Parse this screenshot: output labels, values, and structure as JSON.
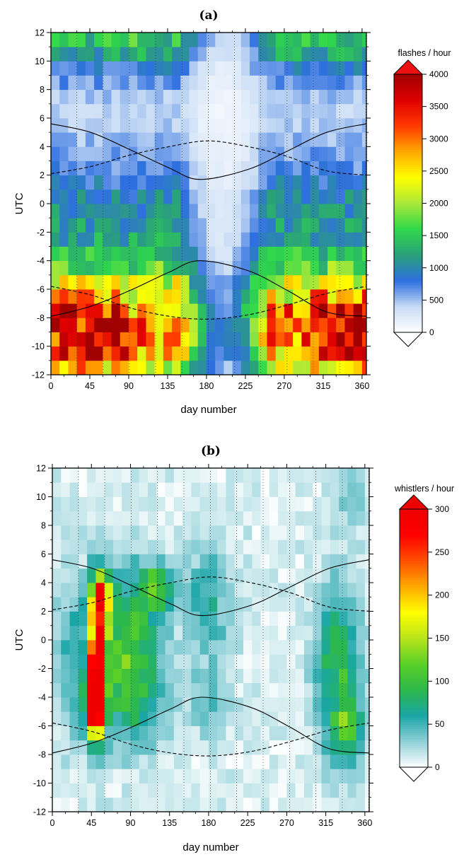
{
  "chart_data": [
    {
      "type": "heatmap",
      "title": "(a)",
      "xlabel": "day number",
      "ylabel": "UTC",
      "xlim": [
        0,
        365
      ],
      "ylim": [
        -12,
        12
      ],
      "x_ticks": [
        0,
        45,
        90,
        135,
        180,
        225,
        270,
        315,
        360
      ],
      "y_ticks": [
        -12,
        -10,
        -8,
        -6,
        -4,
        -2,
        0,
        2,
        4,
        6,
        8,
        10,
        12
      ],
      "colorbar": {
        "title": "flashes / hour",
        "min": 0,
        "max": 4000,
        "ticks": [
          0,
          500,
          1000,
          1500,
          2000,
          2500,
          3000,
          3500,
          4000
        ],
        "colors": [
          "#ffffff",
          "#c8dcf5",
          "#2e6fe0",
          "#2aa07a",
          "#2fd84a",
          "#a8e83a",
          "#ffff00",
          "#ffaa00",
          "#ff3a00",
          "#e00000",
          "#a00000"
        ]
      },
      "bins": {
        "x_bin_days": 10,
        "y_bin_hours": 1
      },
      "grid": "dotted vertical lines at day boundaries",
      "curve_solid_upper": {
        "x": [
          0,
          46,
          91,
          137,
          172,
          228,
          274,
          319,
          365
        ],
        "y": [
          5.6,
          5.0,
          3.8,
          2.5,
          1.7,
          2.4,
          3.7,
          5.0,
          5.6
        ]
      },
      "curve_dashed_upper": {
        "x": [
          0,
          46,
          91,
          137,
          182,
          228,
          274,
          319,
          365
        ],
        "y": [
          2.1,
          2.6,
          3.4,
          4.0,
          4.4,
          4.0,
          3.3,
          2.3,
          2.0
        ]
      },
      "curve_solid_lower": {
        "x": [
          0,
          46,
          91,
          137,
          172,
          228,
          274,
          319,
          365
        ],
        "y": [
          -7.9,
          -7.2,
          -6.1,
          -4.8,
          -4.0,
          -4.7,
          -6.1,
          -7.6,
          -7.9
        ]
      },
      "curve_dashed_lower": {
        "x": [
          0,
          46,
          91,
          137,
          182,
          228,
          274,
          319,
          365
        ],
        "y": [
          -5.8,
          -6.4,
          -7.3,
          -7.9,
          -8.1,
          -7.8,
          -7.1,
          -6.3,
          -5.8
        ]
      },
      "profile_peak_utc": -9,
      "profile_rows": [
        [
          -12,
          2500
        ],
        [
          -11,
          3300
        ],
        [
          -10,
          3500
        ],
        [
          -9,
          3600
        ],
        [
          -8,
          3400
        ],
        [
          -7,
          2800
        ],
        [
          -6,
          2200
        ],
        [
          -5,
          1700
        ],
        [
          -4,
          1400
        ],
        [
          -3,
          1200
        ],
        [
          -2,
          1150
        ],
        [
          -1,
          1050
        ],
        [
          0,
          1000
        ],
        [
          1,
          850
        ],
        [
          2,
          700
        ],
        [
          3,
          600
        ],
        [
          4,
          520
        ],
        [
          5,
          450
        ],
        [
          6,
          420
        ],
        [
          7,
          500
        ],
        [
          8,
          650
        ],
        [
          9,
          850
        ],
        [
          10,
          1200
        ],
        [
          11,
          1500
        ]
      ],
      "season_low_days": [
        150,
        250
      ],
      "season_low_factor": 0.25
    },
    {
      "type": "heatmap",
      "title": "(b)",
      "xlabel": "day number",
      "ylabel": "UTC",
      "xlim": [
        0,
        365
      ],
      "ylim": [
        -12,
        12
      ],
      "x_ticks": [
        0,
        45,
        90,
        135,
        180,
        225,
        270,
        315,
        360
      ],
      "y_ticks": [
        -12,
        -10,
        -8,
        -6,
        -4,
        -2,
        0,
        2,
        4,
        6,
        8,
        10,
        12
      ],
      "colorbar": {
        "title": "whistlers / hour",
        "min": 0,
        "max": 300,
        "ticks": [
          0,
          50,
          100,
          150,
          200,
          250,
          300
        ],
        "colors": [
          "#ffffff",
          "#8fd0d8",
          "#1aa6a6",
          "#2cb84a",
          "#5ad028",
          "#b8e41a",
          "#ffff00",
          "#ffaa00",
          "#ff5000",
          "#ff0000",
          "#ee0000"
        ]
      },
      "bins": {
        "x_bin_days": 10,
        "y_bin_hours": 1
      },
      "grid": "dotted vertical lines at day boundaries",
      "curve_solid_upper": {
        "x": [
          0,
          46,
          91,
          137,
          172,
          228,
          274,
          319,
          365
        ],
        "y": [
          5.6,
          5.0,
          3.8,
          2.5,
          1.7,
          2.4,
          3.7,
          5.0,
          5.6
        ]
      },
      "curve_dashed_upper": {
        "x": [
          0,
          46,
          91,
          137,
          182,
          228,
          274,
          319,
          365
        ],
        "y": [
          2.1,
          2.6,
          3.4,
          4.0,
          4.4,
          4.0,
          3.3,
          2.3,
          2.0
        ]
      },
      "curve_solid_lower": {
        "x": [
          0,
          46,
          91,
          137,
          172,
          228,
          274,
          319,
          365
        ],
        "y": [
          -7.9,
          -7.2,
          -6.1,
          -4.8,
          -4.0,
          -4.7,
          -6.1,
          -7.6,
          -7.9
        ]
      },
      "curve_dashed_lower": {
        "x": [
          0,
          46,
          91,
          137,
          182,
          228,
          274,
          319,
          365
        ],
        "y": [
          -5.8,
          -6.4,
          -7.3,
          -7.9,
          -8.1,
          -7.8,
          -7.1,
          -6.3,
          -5.8
        ]
      },
      "hotspots": [
        {
          "day": 52,
          "utc": -1.5,
          "value": 280,
          "sd": 7,
          "su": 3.2
        },
        {
          "day": 48,
          "utc": -4.5,
          "value": 260,
          "sd": 7,
          "su": 1.5
        },
        {
          "day": 56,
          "utc": 3.2,
          "value": 210,
          "sd": 8,
          "su": 1.0
        },
        {
          "day": 85,
          "utc": 0,
          "value": 85,
          "sd": 25,
          "su": 3.5
        },
        {
          "day": 95,
          "utc": -4,
          "value": 55,
          "sd": 25,
          "su": 2.5
        },
        {
          "day": 120,
          "utc": 3.5,
          "value": 95,
          "sd": 15,
          "su": 1.2
        },
        {
          "day": 180,
          "utc": 2.5,
          "value": 45,
          "sd": 20,
          "su": 3.0
        },
        {
          "day": 180,
          "utc": -4.5,
          "value": 35,
          "sd": 15,
          "su": 1.5
        },
        {
          "day": 330,
          "utc": -2,
          "value": 85,
          "sd": 18,
          "su": 4.0
        },
        {
          "day": 340,
          "utc": -6.5,
          "value": 80,
          "sd": 12,
          "su": 1.5
        },
        {
          "day": 22,
          "utc": -1,
          "value": 40,
          "sd": 15,
          "su": 4.0
        },
        {
          "day": 345,
          "utc": 10.5,
          "value": 30,
          "sd": 10,
          "su": 2.0
        }
      ]
    }
  ]
}
